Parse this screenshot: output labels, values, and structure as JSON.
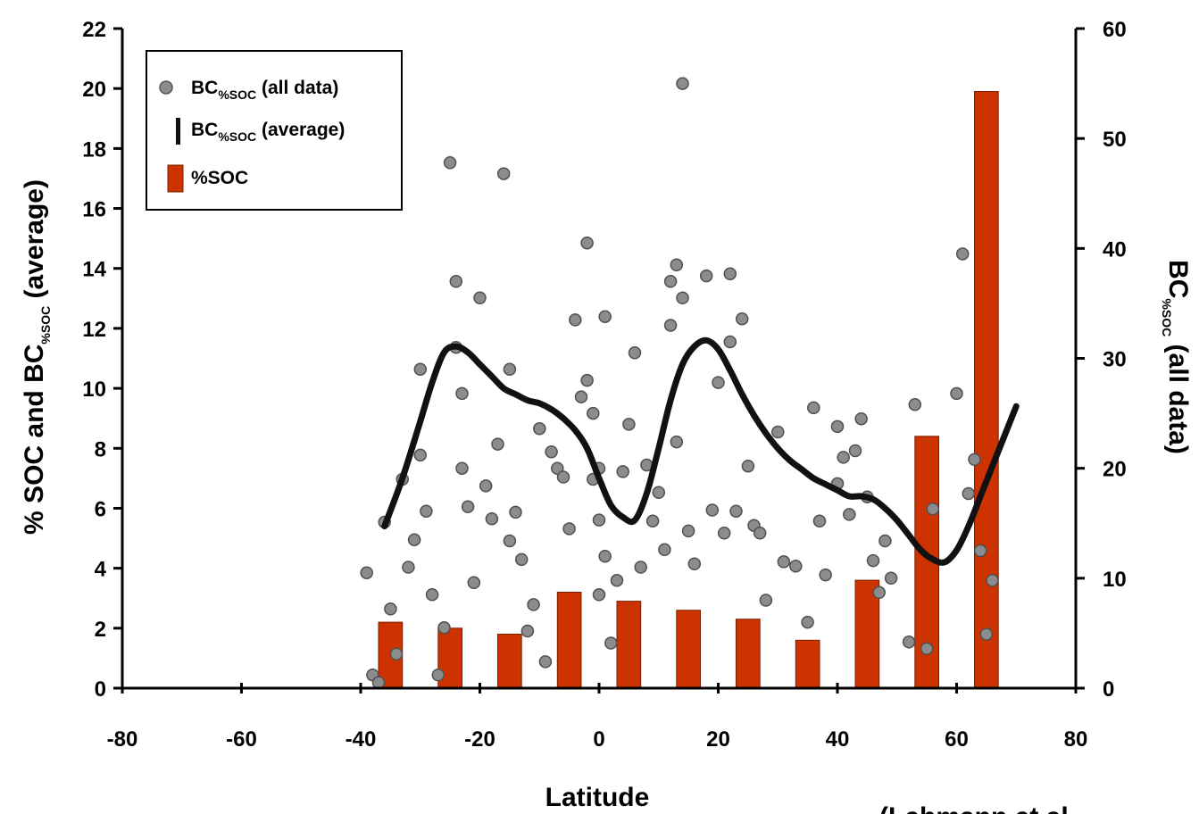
{
  "chart_data": {
    "type": "bar",
    "xlabel": "Latitude",
    "ylabel_left": {
      "main": "% SOC and BC",
      "sub": "%SOC",
      "suffix": " (average)"
    },
    "ylabel_right": {
      "main": "BC",
      "sub": "%SOC",
      "suffix": " (all data)"
    },
    "x_range": [
      -80,
      80
    ],
    "x_ticks": [
      -80,
      -60,
      -40,
      -20,
      0,
      20,
      40,
      60,
      80
    ],
    "y_left_range": [
      0,
      22
    ],
    "y_left_ticks": [
      0,
      2,
      4,
      6,
      8,
      10,
      12,
      14,
      16,
      18,
      20,
      22
    ],
    "y_right_range": [
      0,
      60
    ],
    "y_right_ticks": [
      0,
      10,
      20,
      30,
      40,
      50,
      60
    ],
    "grid": false,
    "legend_position": "top-left",
    "legend": [
      {
        "main": "BC",
        "sub": "%SOC",
        "suffix": " (all data)",
        "marker": "circle"
      },
      {
        "main": "BC",
        "sub": "%SOC",
        "suffix": " (average)",
        "marker": "line"
      },
      {
        "main": "%SOC",
        "sub": "",
        "suffix": "",
        "marker": "bar"
      }
    ],
    "colors": {
      "bar": "#cc3300",
      "point": "#8c8c8c",
      "line": "#111111"
    },
    "series": [
      {
        "kind": "bar",
        "axis": "left",
        "x": [
          -35,
          -25,
          -15,
          -5,
          5,
          15,
          25,
          35,
          45,
          55,
          65
        ],
        "values": [
          2.2,
          2.0,
          1.8,
          3.2,
          2.9,
          2.6,
          2.3,
          1.6,
          3.6,
          8.4,
          19.9
        ]
      },
      {
        "kind": "line",
        "axis": "left",
        "x": [
          -36,
          -33,
          -30,
          -28,
          -26,
          -24,
          -22,
          -20,
          -18,
          -16,
          -14,
          -12,
          -10,
          -8,
          -6,
          -4,
          -2,
          0,
          2,
          4,
          6,
          8,
          10,
          12,
          14,
          16,
          18,
          20,
          22,
          24,
          26,
          28,
          30,
          32,
          34,
          36,
          38,
          40,
          42,
          44,
          46,
          48,
          50,
          52,
          54,
          56,
          58,
          60,
          62,
          64,
          66,
          68,
          70
        ],
        "values": [
          5.4,
          7.0,
          8.9,
          10.2,
          11.2,
          11.4,
          11.2,
          10.8,
          10.4,
          10.0,
          9.8,
          9.6,
          9.5,
          9.3,
          9.0,
          8.6,
          8.0,
          7.0,
          6.1,
          5.7,
          5.6,
          6.5,
          8.0,
          9.6,
          10.8,
          11.4,
          11.6,
          11.3,
          10.6,
          9.8,
          9.1,
          8.5,
          8.0,
          7.6,
          7.3,
          7.0,
          6.8,
          6.6,
          6.4,
          6.4,
          6.3,
          6.0,
          5.6,
          5.1,
          4.6,
          4.3,
          4.2,
          4.6,
          5.4,
          6.4,
          7.4,
          8.4,
          9.4
        ]
      },
      {
        "kind": "scatter",
        "axis": "right",
        "points": [
          [
            -39,
            10.5
          ],
          [
            -38,
            1.2
          ],
          [
            -37,
            0.5
          ],
          [
            -36,
            15.1
          ],
          [
            -35,
            7.2
          ],
          [
            -34,
            3.1
          ],
          [
            -33,
            19.0
          ],
          [
            -32,
            11.0
          ],
          [
            -31,
            13.5
          ],
          [
            -30,
            29.0
          ],
          [
            -30,
            21.2
          ],
          [
            -29,
            16.1
          ],
          [
            -28,
            8.5
          ],
          [
            -27,
            1.2
          ],
          [
            -26,
            5.5
          ],
          [
            -25,
            47.8
          ],
          [
            -24,
            37.0
          ],
          [
            -24,
            31.0
          ],
          [
            -23,
            26.8
          ],
          [
            -23,
            20.0
          ],
          [
            -22,
            16.5
          ],
          [
            -21,
            9.6
          ],
          [
            -20,
            35.5
          ],
          [
            -19,
            18.4
          ],
          [
            -18,
            15.4
          ],
          [
            -17,
            22.2
          ],
          [
            -16,
            46.8
          ],
          [
            -15,
            29.0
          ],
          [
            -15,
            13.4
          ],
          [
            -14,
            16.0
          ],
          [
            -13,
            11.7
          ],
          [
            -12,
            5.2
          ],
          [
            -11,
            7.6
          ],
          [
            -10,
            23.6
          ],
          [
            -9,
            2.4
          ],
          [
            -8,
            21.5
          ],
          [
            -7,
            20.0
          ],
          [
            -6,
            19.2
          ],
          [
            -5,
            14.5
          ],
          [
            -4,
            33.5
          ],
          [
            -3,
            26.5
          ],
          [
            -2,
            40.5
          ],
          [
            -2,
            28.0
          ],
          [
            -1,
            25.0
          ],
          [
            -1,
            19.0
          ],
          [
            0,
            20.0
          ],
          [
            0,
            15.3
          ],
          [
            0,
            8.5
          ],
          [
            1,
            33.8
          ],
          [
            1,
            12.0
          ],
          [
            2,
            4.1
          ],
          [
            3,
            9.8
          ],
          [
            4,
            19.7
          ],
          [
            5,
            24.0
          ],
          [
            6,
            30.5
          ],
          [
            7,
            11.0
          ],
          [
            8,
            20.3
          ],
          [
            9,
            15.2
          ],
          [
            10,
            17.8
          ],
          [
            11,
            12.6
          ],
          [
            12,
            37.0
          ],
          [
            12,
            33.0
          ],
          [
            13,
            38.5
          ],
          [
            13,
            22.4
          ],
          [
            14,
            55.0
          ],
          [
            14,
            35.5
          ],
          [
            15,
            14.3
          ],
          [
            16,
            11.3
          ],
          [
            18,
            37.5
          ],
          [
            19,
            16.2
          ],
          [
            20,
            27.8
          ],
          [
            21,
            14.1
          ],
          [
            22,
            37.7
          ],
          [
            22,
            31.5
          ],
          [
            23,
            16.1
          ],
          [
            24,
            33.6
          ],
          [
            25,
            20.2
          ],
          [
            26,
            14.8
          ],
          [
            27,
            14.1
          ],
          [
            28,
            8.0
          ],
          [
            30,
            23.3
          ],
          [
            31,
            11.5
          ],
          [
            33,
            11.1
          ],
          [
            35,
            6.0
          ],
          [
            36,
            25.5
          ],
          [
            37,
            15.2
          ],
          [
            38,
            10.3
          ],
          [
            40,
            23.8
          ],
          [
            40,
            18.6
          ],
          [
            41,
            21.0
          ],
          [
            42,
            15.8
          ],
          [
            43,
            21.6
          ],
          [
            44,
            24.5
          ],
          [
            45,
            17.4
          ],
          [
            46,
            11.6
          ],
          [
            47,
            8.7
          ],
          [
            48,
            13.4
          ],
          [
            49,
            10.0
          ],
          [
            52,
            4.2
          ],
          [
            53,
            25.8
          ],
          [
            55,
            3.6
          ],
          [
            56,
            16.3
          ],
          [
            60,
            26.8
          ],
          [
            61,
            39.5
          ],
          [
            62,
            17.7
          ],
          [
            63,
            20.8
          ],
          [
            64,
            12.5
          ],
          [
            65,
            4.9
          ],
          [
            66,
            9.8
          ]
        ]
      }
    ]
  },
  "footer_text": "(Lehmann et al"
}
